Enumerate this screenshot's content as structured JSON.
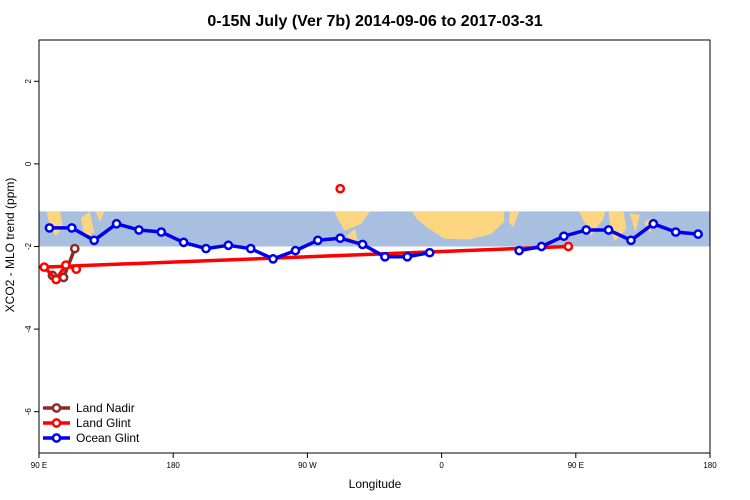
{
  "chart_data": {
    "type": "line",
    "title": "0-15N July (Ver 7b)   2014-09-06 to 2017-03-31",
    "xlabel": "Longitude",
    "ylabel": "XCO2 - MLO trend (ppm)",
    "x_ticks": [
      {
        "value": 90,
        "label": "90 E"
      },
      {
        "value": 180,
        "label": "180"
      },
      {
        "value": 270,
        "label": "90 W"
      },
      {
        "value": 360,
        "label": "0"
      },
      {
        "value": 450,
        "label": "90 E"
      },
      {
        "value": 540,
        "label": "180"
      }
    ],
    "y_ticks": [
      {
        "value": 2,
        "label": "2"
      },
      {
        "value": 0,
        "label": "0"
      },
      {
        "value": -2,
        "label": "-2"
      },
      {
        "value": -4,
        "label": "-4"
      },
      {
        "value": -6,
        "label": "-6"
      }
    ],
    "xlim": [
      90,
      540
    ],
    "ylim": [
      -7,
      3
    ],
    "map_band_y": [
      -2.0,
      -1.15
    ],
    "legend_position": "bottom-left",
    "series": [
      {
        "name": "Land Nadir",
        "color": "#8b2a2a",
        "points": [
          [
            99,
            -2.7
          ],
          [
            106.5,
            -2.75
          ],
          [
            114,
            -2.05
          ]
        ]
      },
      {
        "name": "Land Glint",
        "color": "#ff0000",
        "points": [
          [
            292,
            -0.6
          ]
        ],
        "segments": [
          [
            [
              85,
              -2.0
            ],
            [
              93.5,
              -2.5
            ],
            [
              101.5,
              -2.8
            ],
            [
              108,
              -2.45
            ],
            [
              115,
              -2.55
            ]
          ]
        ]
      },
      {
        "name": "Ocean Glint",
        "color": "#0000ee",
        "segments": [
          [
            [
              97,
              -1.55
            ],
            [
              112,
              -1.55
            ],
            [
              127,
              -1.85
            ],
            [
              142,
              -1.45
            ],
            [
              157,
              -1.6
            ],
            [
              172,
              -1.65
            ],
            [
              187,
              -1.9
            ],
            [
              202,
              -2.05
            ],
            [
              217,
              -1.97
            ],
            [
              232,
              -2.05
            ],
            [
              247,
              -2.3
            ],
            [
              262,
              -2.1
            ],
            [
              277,
              -1.85
            ],
            [
              292,
              -1.8
            ],
            [
              307,
              -1.95
            ],
            [
              322,
              -2.25
            ],
            [
              337,
              -2.25
            ],
            [
              352,
              -2.15
            ]
          ],
          [
            [
              412,
              -2.1
            ],
            [
              427,
              -2.0
            ],
            [
              442,
              -1.75
            ],
            [
              457,
              -1.6
            ],
            [
              472,
              -1.6
            ],
            [
              487,
              -1.85
            ],
            [
              502,
              -1.45
            ],
            [
              517,
              -1.65
            ],
            [
              532,
              -1.7
            ]
          ]
        ]
      }
    ]
  }
}
